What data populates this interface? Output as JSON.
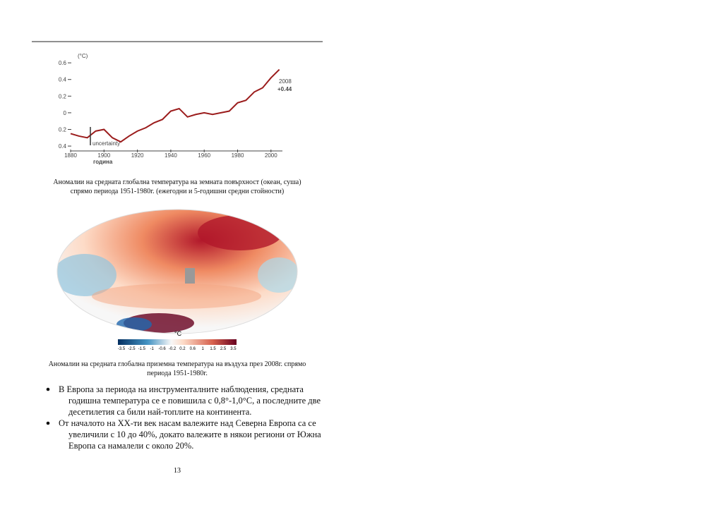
{
  "figure1": {
    "y_unit": "(°C)",
    "xlabel": "година",
    "annotation_uncertainty": "uncertainty",
    "annotation_year": "2008",
    "annotation_value": "+0.44",
    "xlim": [
      1875,
      2010
    ],
    "ylim": [
      -0.45,
      0.65
    ],
    "xticks": [
      1880,
      1900,
      1920,
      1940,
      1960,
      1980,
      2000
    ],
    "yticks": [
      {
        "value": 0.6,
        "label": "0.6"
      },
      {
        "value": 0.4,
        "label": "0.4"
      },
      {
        "value": 0.2,
        "label": "0.2"
      },
      0,
      {
        "value": -0.2,
        "label": "0.2"
      },
      {
        "value": -0.4,
        "label": "0.4"
      }
    ],
    "color": "#9b1c1c",
    "x": [
      1880,
      1885,
      1890,
      1895,
      1900,
      1905,
      1910,
      1915,
      1920,
      1925,
      1930,
      1935,
      1940,
      1945,
      1950,
      1955,
      1960,
      1965,
      1970,
      1975,
      1980,
      1985,
      1990,
      1995,
      2000,
      2005
    ],
    "values": [
      -0.25,
      -0.28,
      -0.3,
      -0.22,
      -0.2,
      -0.3,
      -0.35,
      -0.28,
      -0.22,
      -0.18,
      -0.12,
      -0.08,
      0.02,
      0.05,
      -0.05,
      -0.02,
      0.0,
      -0.02,
      0.0,
      0.02,
      0.12,
      0.15,
      0.25,
      0.3,
      0.42,
      0.52
    ]
  },
  "caption1": [
    "Аномалии на средната глобална температура на земната повърхност (океан, суша)",
    "спрямо периода 1951-1980г. (ежегодни и 5-годишни средни стойности)"
  ],
  "map": {
    "unit": "°C",
    "scale_labels": [
      "-3.5",
      "-2.5",
      "-1.5",
      "-1",
      "-0.6",
      "-0.2",
      "0.2",
      "0.6",
      "1",
      "1.5",
      "2.5",
      "3.5"
    ]
  },
  "caption2": [
    "Аномалии на средната глобална приземна температура на въздуха през 2008г. спрямо",
    "периода 1951-1980г."
  ],
  "bullets": [
    [
      "В Европа за периода на инструменталните наблюдения, средната",
      "годишна температура се е повишила с 0,8°-1,0°C, а последните две",
      "десетилетия са били най-топлите на континента."
    ],
    [
      "От началото на XX-ти век насам валежите над Северна Европа са се",
      "увеличили с 10 до 40%, докато валежите в някои региони от Южна",
      "Европа са намалели с около 20%."
    ]
  ],
  "page_number": "13"
}
